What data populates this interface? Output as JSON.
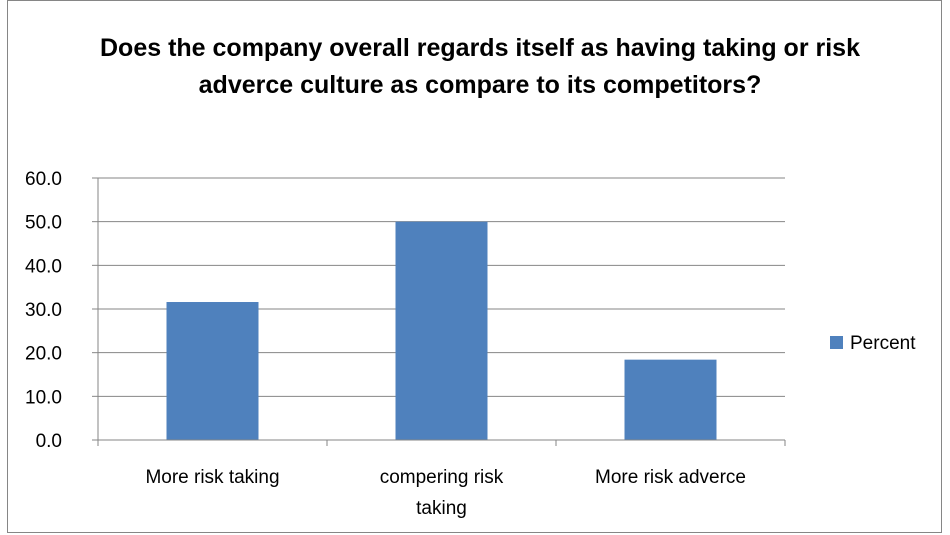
{
  "chart_data": {
    "type": "bar",
    "title": "Does the company  overall regards itself as having taking or risk adverce culture as compare to its competitors?",
    "categories": [
      [
        "More risk taking"
      ],
      [
        "compering risk",
        "taking"
      ],
      [
        "More risk adverce"
      ]
    ],
    "series": [
      {
        "name": "Percent",
        "values": [
          31.6,
          50.0,
          18.4
        ],
        "color": "#4F81BD"
      }
    ],
    "ylim": [
      0,
      60
    ],
    "yticks": [
      "0.0",
      "10.0",
      "20.0",
      "30.0",
      "40.0",
      "50.0",
      "60.0"
    ],
    "ytick_values": [
      0,
      10,
      20,
      30,
      40,
      50,
      60
    ],
    "grid": true,
    "legend": "right"
  }
}
